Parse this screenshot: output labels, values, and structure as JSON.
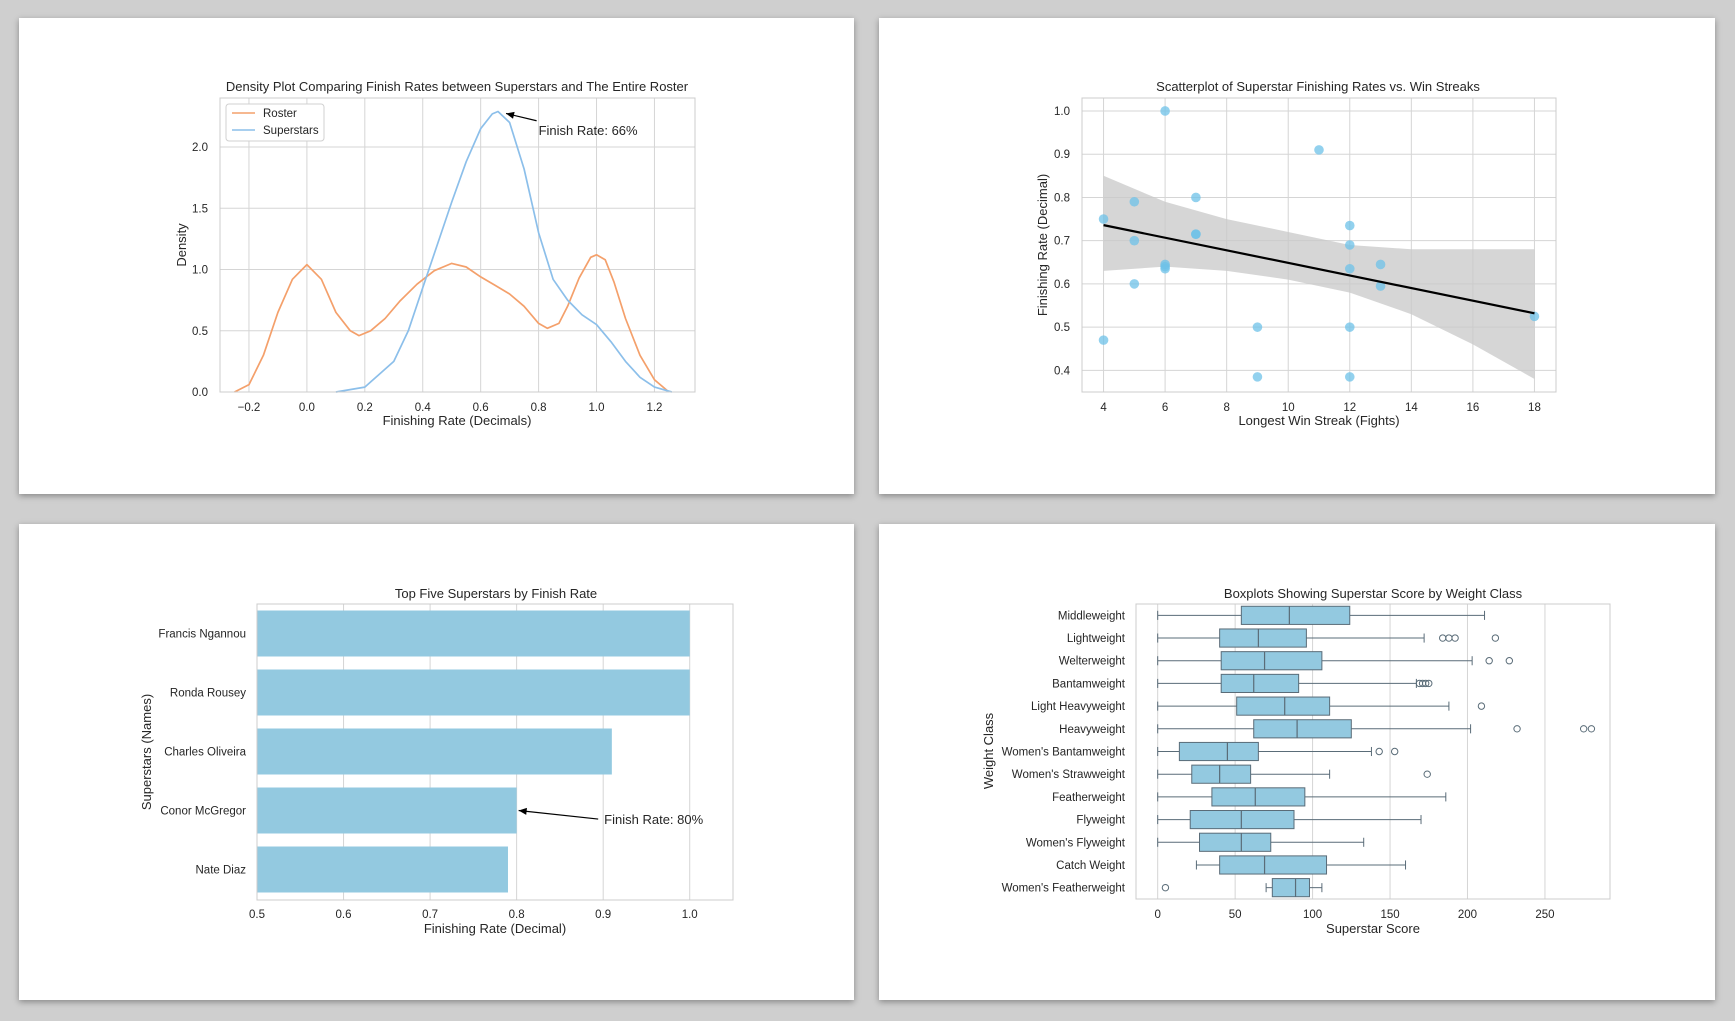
{
  "colors": {
    "roster": "#f4a06b",
    "superstars": "#8cbfea",
    "scatter_points": "#6ec1e8",
    "regression_line": "#000000",
    "confidence_band": "#c8c8c8",
    "bar_fill": "#93c9e0",
    "box_fill": "#93c9e0",
    "box_edge": "#5a6c78"
  },
  "chart_data": [
    {
      "type": "line",
      "title": "Density Plot Comparing Finish Rates between Superstars and The Entire Roster",
      "xlabel": "Finishing Rate (Decimals)",
      "ylabel": "Density",
      "xlim": [
        -0.3,
        1.34
      ],
      "ylim": [
        0.0,
        2.4
      ],
      "xticks": [
        -0.2,
        0.0,
        0.2,
        0.4,
        0.6,
        0.8,
        1.0,
        1.2
      ],
      "xtick_labels": [
        "−0.2",
        "0.0",
        "0.2",
        "0.4",
        "0.6",
        "0.8",
        "1.0",
        "1.2"
      ],
      "yticks": [
        0.0,
        0.5,
        1.0,
        1.5,
        2.0
      ],
      "ytick_labels": [
        "0.0",
        "0.5",
        "1.0",
        "1.5",
        "2.0"
      ],
      "grid": true,
      "legend_position": "top-left",
      "series": [
        {
          "name": "Roster",
          "color_key": "roster",
          "points": [
            [
              -0.25,
              0.0
            ],
            [
              -0.2,
              0.06
            ],
            [
              -0.15,
              0.3
            ],
            [
              -0.1,
              0.65
            ],
            [
              -0.05,
              0.92
            ],
            [
              0.0,
              1.04
            ],
            [
              0.05,
              0.92
            ],
            [
              0.1,
              0.65
            ],
            [
              0.15,
              0.5
            ],
            [
              0.18,
              0.46
            ],
            [
              0.22,
              0.5
            ],
            [
              0.27,
              0.6
            ],
            [
              0.32,
              0.74
            ],
            [
              0.38,
              0.88
            ],
            [
              0.44,
              0.99
            ],
            [
              0.5,
              1.05
            ],
            [
              0.55,
              1.02
            ],
            [
              0.6,
              0.94
            ],
            [
              0.65,
              0.87
            ],
            [
              0.7,
              0.8
            ],
            [
              0.75,
              0.7
            ],
            [
              0.8,
              0.56
            ],
            [
              0.83,
              0.52
            ],
            [
              0.87,
              0.56
            ],
            [
              0.9,
              0.7
            ],
            [
              0.94,
              0.93
            ],
            [
              0.98,
              1.1
            ],
            [
              1.0,
              1.12
            ],
            [
              1.03,
              1.08
            ],
            [
              1.06,
              0.9
            ],
            [
              1.1,
              0.6
            ],
            [
              1.15,
              0.3
            ],
            [
              1.2,
              0.1
            ],
            [
              1.25,
              0.0
            ]
          ]
        },
        {
          "name": "Superstars",
          "color_key": "superstars",
          "points": [
            [
              0.1,
              0.0
            ],
            [
              0.2,
              0.04
            ],
            [
              0.3,
              0.25
            ],
            [
              0.35,
              0.5
            ],
            [
              0.4,
              0.85
            ],
            [
              0.45,
              1.2
            ],
            [
              0.5,
              1.55
            ],
            [
              0.55,
              1.88
            ],
            [
              0.6,
              2.15
            ],
            [
              0.64,
              2.27
            ],
            [
              0.66,
              2.29
            ],
            [
              0.7,
              2.2
            ],
            [
              0.75,
              1.82
            ],
            [
              0.8,
              1.3
            ],
            [
              0.85,
              0.92
            ],
            [
              0.9,
              0.75
            ],
            [
              0.95,
              0.63
            ],
            [
              1.0,
              0.55
            ],
            [
              1.05,
              0.41
            ],
            [
              1.1,
              0.25
            ],
            [
              1.15,
              0.12
            ],
            [
              1.2,
              0.04
            ],
            [
              1.26,
              0.0
            ]
          ]
        }
      ],
      "annotation": {
        "text": "Finish Rate: 66%",
        "point": [
          0.66,
          2.29
        ],
        "text_at": [
          0.8,
          2.1
        ]
      }
    },
    {
      "type": "scatter",
      "title": "Scatterplot of Superstar Finishing Rates vs. Win Streaks",
      "xlabel": "Longest Win Streak (Fights)",
      "ylabel": "Finishing Rate (Decimal)",
      "xlim": [
        3.3,
        18.7
      ],
      "ylim": [
        0.35,
        1.03
      ],
      "xticks": [
        4,
        6,
        8,
        10,
        12,
        14,
        16,
        18
      ],
      "xtick_labels": [
        "4",
        "6",
        "8",
        "10",
        "12",
        "14",
        "16",
        "18"
      ],
      "yticks": [
        0.4,
        0.5,
        0.6,
        0.7,
        0.8,
        0.9,
        1.0
      ],
      "ytick_labels": [
        "0.4",
        "0.5",
        "0.6",
        "0.7",
        "0.8",
        "0.9",
        "1.0"
      ],
      "grid": true,
      "points": [
        [
          4,
          0.75
        ],
        [
          4,
          0.47
        ],
        [
          5,
          0.79
        ],
        [
          5,
          0.7
        ],
        [
          5,
          0.6
        ],
        [
          6,
          1.0
        ],
        [
          6,
          0.645
        ],
        [
          6,
          0.64
        ],
        [
          6,
          0.635
        ],
        [
          7,
          0.8
        ],
        [
          7,
          0.715
        ],
        [
          7,
          0.715
        ],
        [
          9,
          0.5
        ],
        [
          9,
          0.385
        ],
        [
          11,
          0.91
        ],
        [
          12,
          0.735
        ],
        [
          12,
          0.69
        ],
        [
          12,
          0.635
        ],
        [
          12,
          0.5
        ],
        [
          12,
          0.385
        ],
        [
          13,
          0.645
        ],
        [
          13,
          0.595
        ],
        [
          18,
          0.525
        ]
      ],
      "regression": {
        "x": [
          4,
          18
        ],
        "y": [
          0.736,
          0.532
        ]
      },
      "confidence_band": {
        "x": [
          4,
          6,
          8,
          10,
          12,
          14,
          16,
          18
        ],
        "lower": [
          0.63,
          0.64,
          0.63,
          0.61,
          0.58,
          0.53,
          0.46,
          0.38
        ],
        "upper": [
          0.85,
          0.79,
          0.75,
          0.72,
          0.69,
          0.68,
          0.68,
          0.68
        ]
      }
    },
    {
      "type": "bar",
      "orientation": "horizontal",
      "title": "Top Five Superstars by Finish Rate",
      "xlabel": "Finishing Rate (Decimal)",
      "ylabel": "Superstars (Names)",
      "xlim": [
        0.5,
        1.05
      ],
      "xticks": [
        0.5,
        0.6,
        0.7,
        0.8,
        0.9,
        1.0
      ],
      "xtick_labels": [
        "0.5",
        "0.6",
        "0.7",
        "0.8",
        "0.9",
        "1.0"
      ],
      "grid": true,
      "categories": [
        "Francis Ngannou",
        "Ronda Rousey",
        "Charles Oliveira",
        "Conor McGregor",
        "Nate Diaz"
      ],
      "values": [
        1.0,
        1.0,
        0.91,
        0.8,
        0.79
      ],
      "annotation": {
        "text": "Finish Rate: 80%",
        "point": [
          0.8,
          3
        ],
        "text_at": [
          0.9,
          3.23
        ]
      }
    },
    {
      "type": "boxplot",
      "orientation": "horizontal",
      "title": "Boxplots Showing Superstar Score by Weight Class",
      "xlabel": "Superstar Score",
      "ylabel": "Weight Class",
      "xlim": [
        -14,
        292
      ],
      "xticks": [
        0,
        50,
        100,
        150,
        200,
        250
      ],
      "xtick_labels": [
        "0",
        "50",
        "100",
        "150",
        "200",
        "250"
      ],
      "grid": true,
      "categories": [
        "Middleweight",
        "Lightweight",
        "Welterweight",
        "Bantamweight",
        "Light Heavyweight",
        "Heavyweight",
        "Women's Bantamweight",
        "Women's Strawweight",
        "Featherweight",
        "Flyweight",
        "Women's Flyweight",
        "Catch Weight",
        "Women's Featherweight"
      ],
      "boxes": [
        {
          "whisker_low": 0,
          "q1": 54,
          "median": 85,
          "q3": 124,
          "whisker_high": 211,
          "outliers": []
        },
        {
          "whisker_low": 0,
          "q1": 40,
          "median": 65,
          "q3": 96,
          "whisker_high": 172,
          "outliers": [
            184,
            188,
            192,
            218
          ]
        },
        {
          "whisker_low": 0,
          "q1": 41,
          "median": 69,
          "q3": 106,
          "whisker_high": 203,
          "outliers": [
            214,
            227
          ]
        },
        {
          "whisker_low": 0,
          "q1": 41,
          "median": 62,
          "q3": 91,
          "whisker_high": 167,
          "outliers": [
            169,
            171,
            173,
            175
          ]
        },
        {
          "whisker_low": 0,
          "q1": 51,
          "median": 82,
          "q3": 111,
          "whisker_high": 188,
          "outliers": [
            209
          ]
        },
        {
          "whisker_low": 0,
          "q1": 62,
          "median": 90,
          "q3": 125,
          "whisker_high": 202,
          "outliers": [
            232,
            275,
            280
          ]
        },
        {
          "whisker_low": 0,
          "q1": 14,
          "median": 45,
          "q3": 65,
          "whisker_high": 138,
          "outliers": [
            143,
            153
          ]
        },
        {
          "whisker_low": 0,
          "q1": 22,
          "median": 40,
          "q3": 60,
          "whisker_high": 111,
          "outliers": [
            174
          ]
        },
        {
          "whisker_low": 0,
          "q1": 35,
          "median": 63,
          "q3": 95,
          "whisker_high": 186,
          "outliers": []
        },
        {
          "whisker_low": 0,
          "q1": 21,
          "median": 54,
          "q3": 88,
          "whisker_high": 170,
          "outliers": []
        },
        {
          "whisker_low": 0,
          "q1": 27,
          "median": 54,
          "q3": 73,
          "whisker_high": 133,
          "outliers": []
        },
        {
          "whisker_low": 25,
          "q1": 40,
          "median": 69,
          "q3": 109,
          "whisker_high": 160,
          "outliers": []
        },
        {
          "whisker_low": 70,
          "q1": 74,
          "median": 89,
          "q3": 98,
          "whisker_high": 106,
          "outliers": [
            5
          ]
        }
      ]
    }
  ]
}
